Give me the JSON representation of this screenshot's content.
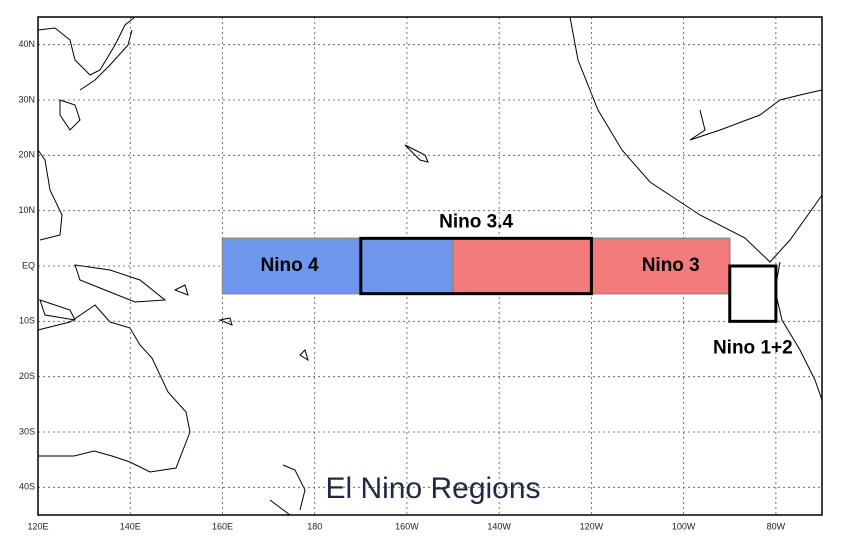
{
  "map": {
    "title": "El Nino Regions",
    "lonlim": [
      120,
      290
    ],
    "latlim": [
      -45,
      45
    ],
    "lon_ticks": [
      {
        "value": 120,
        "label": "120E"
      },
      {
        "value": 140,
        "label": "140E"
      },
      {
        "value": 160,
        "label": "160E"
      },
      180,
      {
        "value": 200,
        "label": "160W"
      },
      {
        "value": 220,
        "label": "140W"
      },
      {
        "value": 240,
        "label": "120W"
      },
      {
        "value": 260,
        "label": "100W"
      },
      {
        "value": 280,
        "label": "80W"
      }
    ],
    "lat_ticks": [
      {
        "value": 40,
        "label": "40N"
      },
      {
        "value": 30,
        "label": "30N"
      },
      {
        "value": 20,
        "label": "20N"
      },
      {
        "value": 10,
        "label": "10N"
      },
      {
        "value": 0,
        "label": "EQ"
      },
      {
        "value": -10,
        "label": "10S"
      },
      {
        "value": -20,
        "label": "20S"
      },
      {
        "value": -30,
        "label": "30S"
      },
      {
        "value": -40,
        "label": "40S"
      }
    ],
    "regions": [
      {
        "label": "Nino 4",
        "lon": [
          160,
          210
        ],
        "lat": [
          -5,
          5
        ],
        "fill": "#7097ee",
        "outline": "#8a8a8a"
      },
      {
        "label": "Nino 3",
        "lon": [
          210,
          270
        ],
        "lat": [
          -5,
          5
        ],
        "fill": "#f37b7b",
        "outline": "#8a8a8a"
      },
      {
        "label": "Nino 3.4",
        "lon": [
          190,
          240
        ],
        "lat": [
          -5,
          5
        ],
        "fill": "none",
        "outline": "#000000"
      },
      {
        "label": "Nino 1+2",
        "lon": [
          270,
          280
        ],
        "lat": [
          -10,
          0
        ],
        "fill": "#ffffff",
        "outline": "#000000"
      }
    ]
  }
}
